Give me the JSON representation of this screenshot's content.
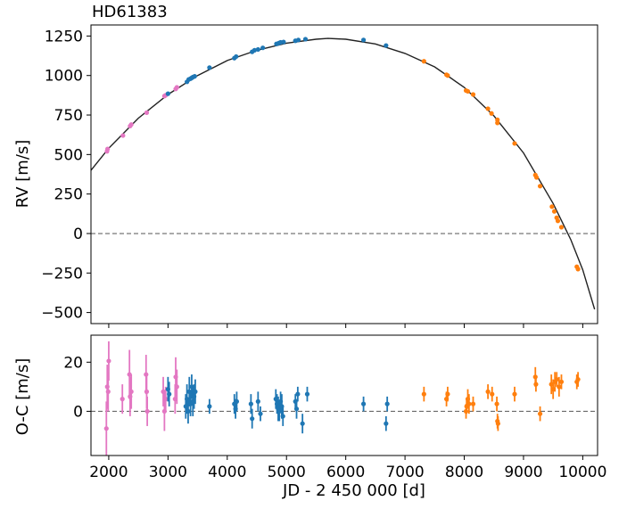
{
  "chart_data": [
    {
      "type": "scatter",
      "panel": "top",
      "title": "HD61383",
      "xlabel": "",
      "ylabel": "RV [m/s]",
      "xlim": [
        1700,
        10250
      ],
      "ylim": [
        -570,
        1320
      ],
      "yticks": [
        1250,
        1000,
        750,
        500,
        250,
        0,
        -250,
        -500
      ],
      "ytick_labels": [
        "1250",
        "1000",
        "750",
        "500",
        "250",
        "0",
        "−250",
        "−500"
      ],
      "grid": false,
      "zero_line": true,
      "colors": {
        "pink": "#e377c2",
        "blue": "#1f77b4",
        "orange": "#ff7f0e",
        "model": "#222222"
      },
      "model_curve": [
        [
          1700,
          400
        ],
        [
          2000,
          540
        ],
        [
          2500,
          730
        ],
        [
          3000,
          880
        ],
        [
          3500,
          1000
        ],
        [
          4000,
          1095
        ],
        [
          4500,
          1160
        ],
        [
          5000,
          1205
        ],
        [
          5500,
          1230
        ],
        [
          5700,
          1235
        ],
        [
          6000,
          1230
        ],
        [
          6500,
          1200
        ],
        [
          7000,
          1140
        ],
        [
          7500,
          1055
        ],
        [
          8000,
          925
        ],
        [
          8500,
          745
        ],
        [
          9000,
          510
        ],
        [
          9500,
          190
        ],
        [
          9800,
          -40
        ],
        [
          10000,
          -230
        ],
        [
          10200,
          -480
        ]
      ],
      "series": [
        {
          "color": "pink",
          "x": [
            1970,
            1980,
            2240,
            2360,
            2380,
            2640,
            2940,
            2960,
            3130,
            3150
          ],
          "y": [
            520,
            535,
            620,
            680,
            690,
            765,
            870,
            875,
            915,
            925
          ]
        },
        {
          "color": "blue",
          "x": [
            3000,
            3320,
            3350,
            3380,
            3400,
            3420,
            3450,
            3700,
            4120,
            4150,
            4420,
            4460,
            4520,
            4600,
            4830,
            4870,
            4900,
            4950,
            5150,
            5200,
            5320,
            6300,
            6680
          ],
          "y": [
            885,
            960,
            975,
            980,
            985,
            990,
            995,
            1050,
            1110,
            1120,
            1150,
            1160,
            1165,
            1175,
            1200,
            1205,
            1210,
            1212,
            1220,
            1225,
            1230,
            1225,
            1190
          ]
        },
        {
          "color": "orange",
          "x": [
            7320,
            7700,
            7720,
            8030,
            8060,
            8150,
            8400,
            8460,
            8560,
            8560,
            8850,
            9200,
            9220,
            9280,
            9480,
            9520,
            9560,
            9580,
            9640,
            9900,
            9920
          ],
          "y": [
            1090,
            1005,
            1000,
            905,
            900,
            880,
            790,
            760,
            720,
            700,
            570,
            370,
            355,
            300,
            170,
            140,
            100,
            80,
            40,
            -210,
            -225
          ]
        }
      ]
    },
    {
      "type": "scatter",
      "panel": "bottom",
      "title": "",
      "xlabel": "JD - 2 450 000 [d]",
      "ylabel": "O-C [m/s]",
      "xlim": [
        1700,
        10250
      ],
      "ylim": [
        -18,
        31
      ],
      "xticks": [
        2000,
        3000,
        4000,
        5000,
        6000,
        7000,
        8000,
        9000,
        10000
      ],
      "xtick_labels": [
        "2000",
        "3000",
        "4000",
        "5000",
        "6000",
        "7000",
        "8000",
        "9000",
        "10000"
      ],
      "yticks": [
        20,
        0
      ],
      "ytick_labels": [
        "20",
        "0"
      ],
      "grid": false,
      "zero_line": true,
      "series": [
        {
          "color": "pink",
          "x": [
            1960,
            1975,
            1990,
            2000,
            2230,
            2350,
            2360,
            2380,
            2630,
            2640,
            2650,
            2920,
            2940,
            2960,
            3120,
            3130,
            3150
          ],
          "y": [
            -7,
            10,
            8,
            20.5,
            5,
            15,
            6,
            8,
            15,
            8,
            0,
            8,
            0,
            5,
            5,
            14,
            10
          ],
          "err": [
            11,
            9,
            8,
            8,
            6,
            10,
            8,
            7,
            8,
            7,
            6,
            6,
            8,
            5,
            6,
            8,
            7
          ]
        },
        {
          "color": "blue",
          "x": [
            3000,
            3020,
            3300,
            3320,
            3340,
            3360,
            3380,
            3400,
            3420,
            3440,
            3460,
            3700,
            4120,
            4140,
            4160,
            4400,
            4420,
            4520,
            4560,
            4820,
            4840,
            4860,
            4880,
            4900,
            4920,
            4940,
            5150,
            5170,
            5190,
            5270,
            5350,
            6300,
            6680,
            6700
          ],
          "y": [
            9,
            7,
            2,
            5,
            0,
            8,
            3,
            10,
            4,
            6,
            8,
            2,
            3,
            1,
            4,
            3,
            -3,
            4,
            -1,
            5,
            3,
            1,
            0,
            4,
            2,
            -2,
            4,
            1,
            7,
            -5,
            7,
            3,
            -5,
            3
          ],
          "err": [
            5,
            5,
            5,
            6,
            5,
            6,
            5,
            5,
            6,
            5,
            5,
            3,
            4,
            4,
            4,
            4,
            4,
            4,
            3,
            4,
            4,
            5,
            4,
            4,
            5,
            4,
            3,
            4,
            3,
            4,
            3,
            3,
            3,
            3
          ]
        },
        {
          "color": "orange",
          "x": [
            7320,
            7700,
            7720,
            8030,
            8040,
            8060,
            8080,
            8150,
            8400,
            8470,
            8550,
            8560,
            8570,
            8850,
            9200,
            9210,
            9280,
            9470,
            9500,
            9530,
            9560,
            9600,
            9640,
            9900,
            9920
          ],
          "y": [
            7,
            5,
            7,
            0,
            2,
            5,
            3,
            3,
            8,
            7,
            3,
            -4,
            -5,
            7,
            14,
            11,
            -1,
            11,
            9,
            12,
            13,
            10,
            12,
            12,
            13
          ],
          "err": [
            3,
            3,
            3,
            3,
            3,
            4,
            4,
            3,
            3,
            3,
            3,
            3,
            3,
            3,
            4,
            3,
            3,
            4,
            4,
            4,
            3,
            4,
            3,
            3,
            3
          ]
        }
      ]
    }
  ]
}
